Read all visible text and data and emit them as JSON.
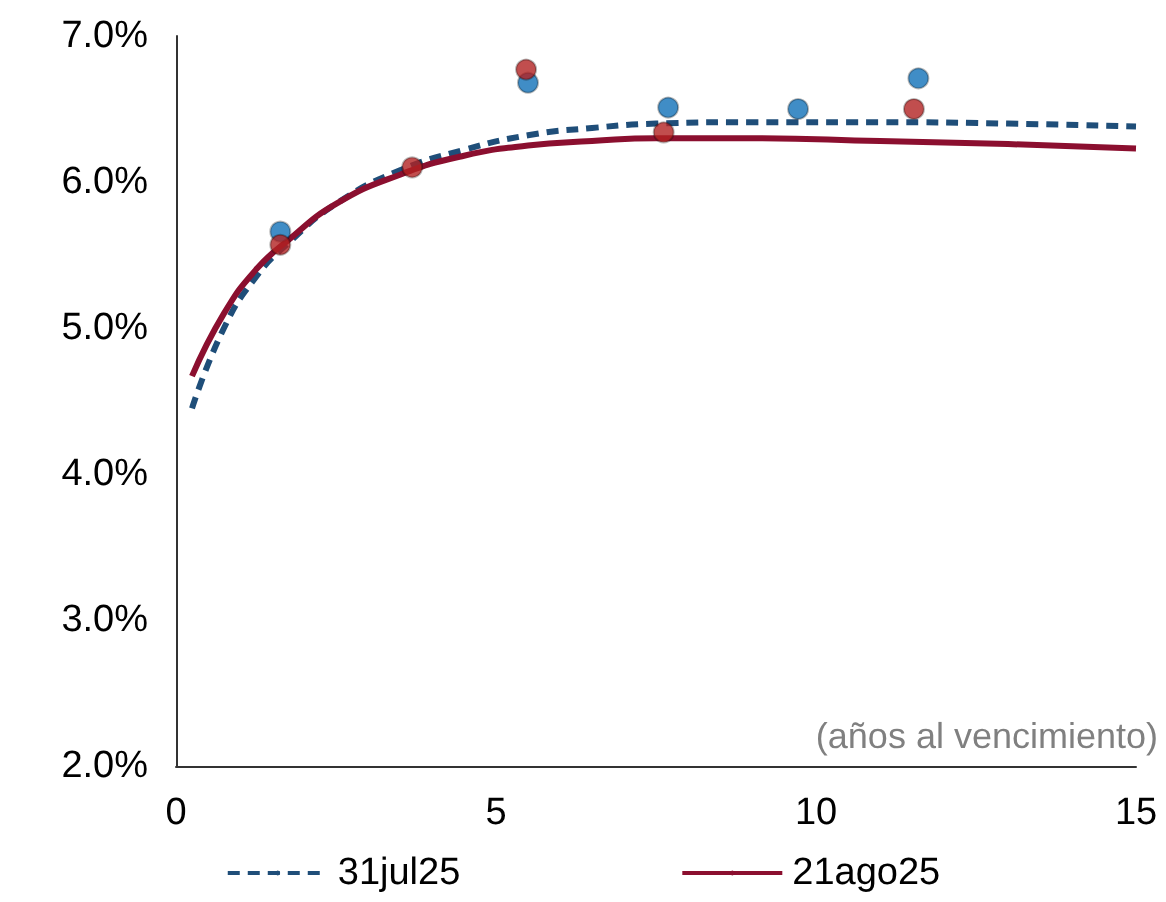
{
  "chart_data": {
    "type": "line",
    "xlabel": "(años al vencimiento)",
    "xlim": [
      0,
      15
    ],
    "xticks": [
      0,
      5,
      10,
      15
    ],
    "ylim": [
      2,
      7
    ],
    "yticks": [
      {
        "value": 2,
        "label": "2.0%"
      },
      {
        "value": 3,
        "label": "3.0%"
      },
      {
        "value": 4,
        "label": "4.0%"
      },
      {
        "value": 5,
        "label": "5.0%"
      },
      {
        "value": 6,
        "label": "6.0%"
      },
      {
        "value": 7,
        "label": "7.0%"
      }
    ],
    "grid": false,
    "legend": "bottom",
    "series": [
      {
        "name": "31jul25",
        "type": "line",
        "color": "#1f4e79",
        "line_style": "dashed",
        "marker": "none",
        "x": [
          0.25,
          0.75,
          1.25,
          1.75,
          2.5,
          3.5,
          4.5,
          5.5,
          6.5,
          7.5,
          9,
          11,
          13,
          15
        ],
        "values": [
          4.45,
          5.0,
          5.35,
          5.58,
          5.85,
          6.08,
          6.22,
          6.32,
          6.37,
          6.4,
          6.41,
          6.41,
          6.4,
          6.38
        ]
      },
      {
        "name": "21ago25",
        "type": "line",
        "color": "#8b0f2f",
        "line_style": "solid",
        "marker": "none",
        "x": [
          0.25,
          0.75,
          1.25,
          1.75,
          2.5,
          3.5,
          4.5,
          5.5,
          6.5,
          7.5,
          9,
          11,
          13,
          15
        ],
        "values": [
          4.67,
          5.1,
          5.4,
          5.6,
          5.85,
          6.05,
          6.18,
          6.25,
          6.28,
          6.3,
          6.3,
          6.28,
          6.26,
          6.23
        ]
      },
      {
        "type": "scatter",
        "color": "#1070b8",
        "marker": "circle",
        "x": [
          1.63,
          5.5,
          7.69,
          9.72,
          11.6
        ],
        "values": [
          5.66,
          6.68,
          6.51,
          6.5,
          6.71
        ]
      },
      {
        "type": "scatter",
        "color": "#b22222",
        "marker": "circle",
        "x": [
          1.63,
          3.69,
          5.47,
          7.62,
          11.53
        ],
        "values": [
          5.57,
          6.1,
          6.77,
          6.34,
          6.5
        ]
      }
    ]
  }
}
